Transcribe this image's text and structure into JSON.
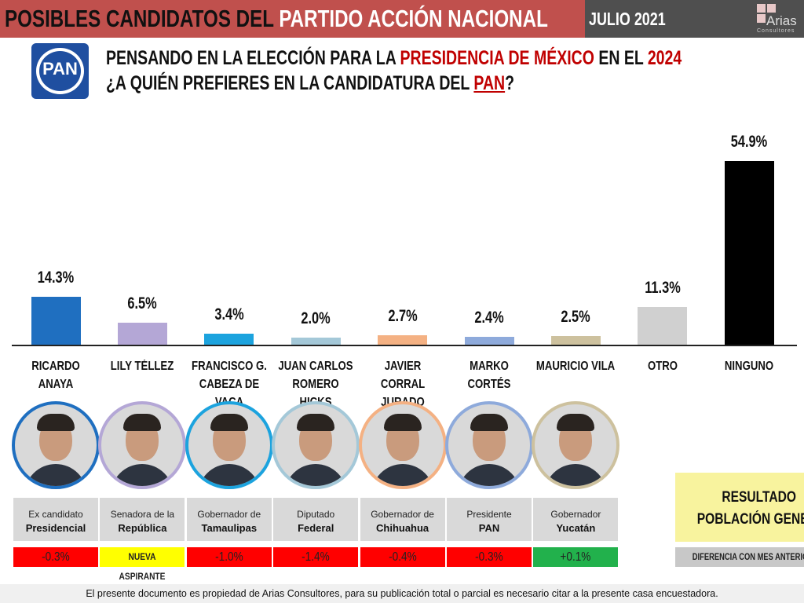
{
  "header": {
    "title_black": "POSIBLES CANDIDATOS DEL ",
    "title_white": "PARTIDO ACCIÓN NACIONAL",
    "date": "JULIO 2021",
    "logo_text": "Arias",
    "logo_sub": "Consultores"
  },
  "pan_logo": "PAN",
  "question": {
    "line1": [
      "PENSANDO EN LA ELECCIÓN PARA LA ",
      "PRESIDENCIA DE MÉXICO",
      " EN EL ",
      "2024"
    ],
    "line2": [
      "¿A QUIÉN PREFIERES EN LA CANDIDATURA DEL ",
      "PAN",
      "?"
    ]
  },
  "chart_data": {
    "type": "bar",
    "title": "¿A quién prefieres en la candidatura del PAN?",
    "categories": [
      "RICARDO ANAYA",
      "LILY TÉLLEZ",
      "FRANCISCO G. CABEZA DE VACA",
      "JUAN CARLOS ROMERO HICKS",
      "JAVIER CORRAL JURADO",
      "MARKO CORTÉS",
      "MAURICIO VILA",
      "OTRO",
      "NINGUNO"
    ],
    "category_lines": [
      [
        "RICARDO ANAYA"
      ],
      [
        "LILY TÉLLEZ"
      ],
      [
        "FRANCISCO G.",
        "CABEZA DE VACA"
      ],
      [
        "JUAN CARLOS",
        "ROMERO HICKS"
      ],
      [
        "JAVIER CORRAL",
        "JURADO"
      ],
      [
        "MARKO CORTÉS"
      ],
      [
        "MAURICIO VILA"
      ],
      [
        "OTRO"
      ],
      [
        "NINGUNO"
      ]
    ],
    "values": [
      14.3,
      6.5,
      3.4,
      2.0,
      2.7,
      2.4,
      2.5,
      11.3,
      54.9
    ],
    "labels": [
      "14.3%",
      "6.5%",
      "3.4%",
      "2.0%",
      "2.7%",
      "2.4%",
      "2.5%",
      "11.3%",
      "54.9%"
    ],
    "colors": [
      "#1f6fc0",
      "#b4a7d6",
      "#1ca3de",
      "#a4c8d8",
      "#f4b183",
      "#8eaadb",
      "#cdc19e",
      "#d0d0d0",
      "#000000"
    ],
    "unit": "%",
    "ylim": [
      0,
      60
    ],
    "grid": false
  },
  "candidates": [
    {
      "role": "Ex candidato",
      "role_bold": "Presidencial",
      "diff": "-0.3%",
      "diff_color": "#ff0000"
    },
    {
      "role": "Senadora de la",
      "role_bold": "República",
      "diff": "NUEVA ASPIRANTE",
      "diff_color": "#ffff00"
    },
    {
      "role": "Gobernador de",
      "role_bold": "Tamaulipas",
      "diff": "-1.0%",
      "diff_color": "#ff0000"
    },
    {
      "role": "Diputado",
      "role_bold": "Federal",
      "diff": "-1.4%",
      "diff_color": "#ff0000"
    },
    {
      "role": "Gobernador de",
      "role_bold": "Chihuahua",
      "diff": "-0.4%",
      "diff_color": "#ff0000"
    },
    {
      "role": "Presidente",
      "role_bold": "PAN",
      "diff": "-0.3%",
      "diff_color": "#ff0000"
    },
    {
      "role": "Gobernador",
      "role_bold": "Yucatán",
      "diff": "+0.1%",
      "diff_color": "#22b14c"
    }
  ],
  "legend": {
    "result_line1": "RESULTADO",
    "result_line2": "POBLACIÓN GENERAL",
    "diff_label": "DIFERENCIA CON MES ANTERIOR"
  },
  "footer": "El presente documento es propiedad de Arias Consultores, para su publicación total o parcial es necesario citar a la presente casa encuestadora."
}
